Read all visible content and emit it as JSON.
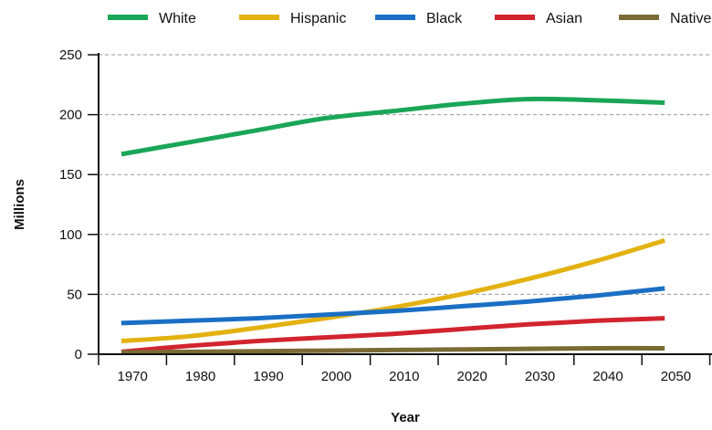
{
  "chart_data": {
    "type": "line",
    "xlabel": "Year",
    "ylabel": "Millions",
    "ylim": [
      0,
      250
    ],
    "y_ticks": [
      0,
      50,
      100,
      150,
      200,
      250
    ],
    "x_tick_labels": [
      "1970",
      "1980",
      "1990",
      "2000",
      "2010",
      "2020",
      "2030",
      "2040",
      "2050"
    ],
    "grid": "horizontal dashed",
    "legend_position": "top",
    "x": [
      1970,
      1980,
      1990,
      2000,
      2010,
      2020,
      2030,
      2040,
      2050
    ],
    "series": [
      {
        "name": "White",
        "color": "#1aa657",
        "values": [
          167,
          177,
          187,
          197,
          203,
          209,
          213,
          212,
          210
        ]
      },
      {
        "name": "Hispanic",
        "color": "#e3b211",
        "values": [
          11,
          15,
          22,
          30,
          39,
          50,
          63,
          78,
          95
        ]
      },
      {
        "name": "Black",
        "color": "#1a6fc4",
        "values": [
          26,
          28,
          30,
          33,
          36,
          40,
          44,
          49,
          55
        ]
      },
      {
        "name": "Asian",
        "color": "#d1242f",
        "values": [
          2,
          7,
          11,
          14,
          17,
          21,
          25,
          28,
          30
        ]
      },
      {
        "name": "Native",
        "color": "#7a6b35",
        "values": [
          1.5,
          2,
          2.5,
          3,
          3.5,
          4,
          4.5,
          5,
          5
        ]
      }
    ]
  }
}
